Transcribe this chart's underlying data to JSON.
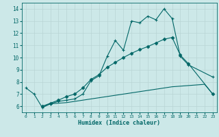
{
  "xlabel": "Humidex (Indice chaleur)",
  "xlim": [
    -0.5,
    23.5
  ],
  "ylim": [
    5.5,
    14.5
  ],
  "yticks": [
    6,
    7,
    8,
    9,
    10,
    11,
    12,
    13,
    14
  ],
  "xticks": [
    0,
    1,
    2,
    3,
    4,
    5,
    6,
    7,
    8,
    9,
    10,
    11,
    12,
    13,
    14,
    15,
    16,
    17,
    18,
    19,
    20,
    21,
    22,
    23
  ],
  "bg_color": "#cce8e8",
  "line_color": "#006666",
  "grid_color": "#b8d4d4",
  "series1_x": [
    0,
    1,
    2,
    3,
    4,
    5,
    6,
    7,
    8,
    9,
    10,
    11,
    12,
    13,
    14,
    15,
    16,
    17,
    18,
    19,
    20,
    23
  ],
  "series1_y": [
    7.5,
    7.0,
    5.9,
    6.2,
    6.4,
    6.5,
    6.6,
    7.0,
    8.1,
    8.5,
    10.1,
    11.4,
    10.6,
    13.0,
    12.85,
    13.4,
    13.1,
    14.0,
    13.2,
    10.1,
    9.4,
    8.4
  ],
  "series2_x": [
    2,
    3,
    4,
    5,
    6,
    7,
    8,
    9,
    10,
    11,
    12,
    13,
    14,
    15,
    16,
    17,
    18,
    19,
    20,
    23
  ],
  "series2_y": [
    6.0,
    6.25,
    6.5,
    6.8,
    7.0,
    7.5,
    8.2,
    8.6,
    9.2,
    9.6,
    10.0,
    10.35,
    10.65,
    10.9,
    11.2,
    11.5,
    11.65,
    10.2,
    9.5,
    7.0
  ],
  "series3_x": [
    2,
    3,
    4,
    5,
    6,
    7,
    8,
    9,
    10,
    11,
    12,
    13,
    14,
    15,
    16,
    17,
    18,
    19,
    20,
    21,
    22,
    23
  ],
  "series3_y": [
    5.9,
    6.2,
    6.25,
    6.3,
    6.4,
    6.5,
    6.6,
    6.7,
    6.8,
    6.9,
    7.0,
    7.1,
    7.2,
    7.3,
    7.4,
    7.5,
    7.6,
    7.65,
    7.7,
    7.75,
    7.8,
    7.0
  ]
}
